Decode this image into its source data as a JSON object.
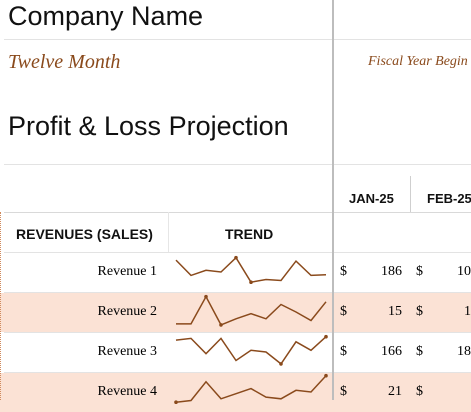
{
  "header": {
    "company_name": "Company Name",
    "subtitle": "Twelve Month",
    "fiscal_label": "Fiscal Year Begin",
    "title": "Profit & Loss Projection"
  },
  "months": [
    "JAN-25",
    "FEB-25"
  ],
  "columns": {
    "section_label": "REVENUES (SALES)",
    "trend_label": "TREND"
  },
  "rows": [
    {
      "label": "Revenue 1",
      "cur1": "$",
      "jan": "186",
      "cur2": "$",
      "feb": "10",
      "trend": [
        0.85,
        0.4,
        0.55,
        0.5,
        0.92,
        0.2,
        0.28,
        0.25,
        0.82,
        0.4,
        0.42
      ]
    },
    {
      "label": "Revenue 2",
      "cur1": "$",
      "jan": "15",
      "cur2": "$",
      "feb": "1",
      "trend": [
        0.15,
        0.15,
        0.95,
        0.12,
        0.3,
        0.45,
        0.3,
        0.72,
        0.5,
        0.25,
        0.8
      ]
    },
    {
      "label": "Revenue 3",
      "cur1": "$",
      "jan": "166",
      "cur2": "$",
      "feb": "18",
      "trend": [
        0.85,
        0.9,
        0.45,
        0.9,
        0.25,
        0.55,
        0.5,
        0.15,
        0.8,
        0.55,
        0.95
      ]
    },
    {
      "label": "Revenue 4",
      "cur1": "$",
      "jan": "21",
      "cur2": "$",
      "feb": "",
      "trend": [
        0.2,
        0.25,
        0.8,
        0.3,
        0.45,
        0.6,
        0.35,
        0.3,
        0.55,
        0.5,
        0.98
      ]
    }
  ],
  "colors": {
    "accent": "#8a4a1c",
    "row_shade": "#fbe2d5",
    "sparkline": "#8a4a1c"
  }
}
